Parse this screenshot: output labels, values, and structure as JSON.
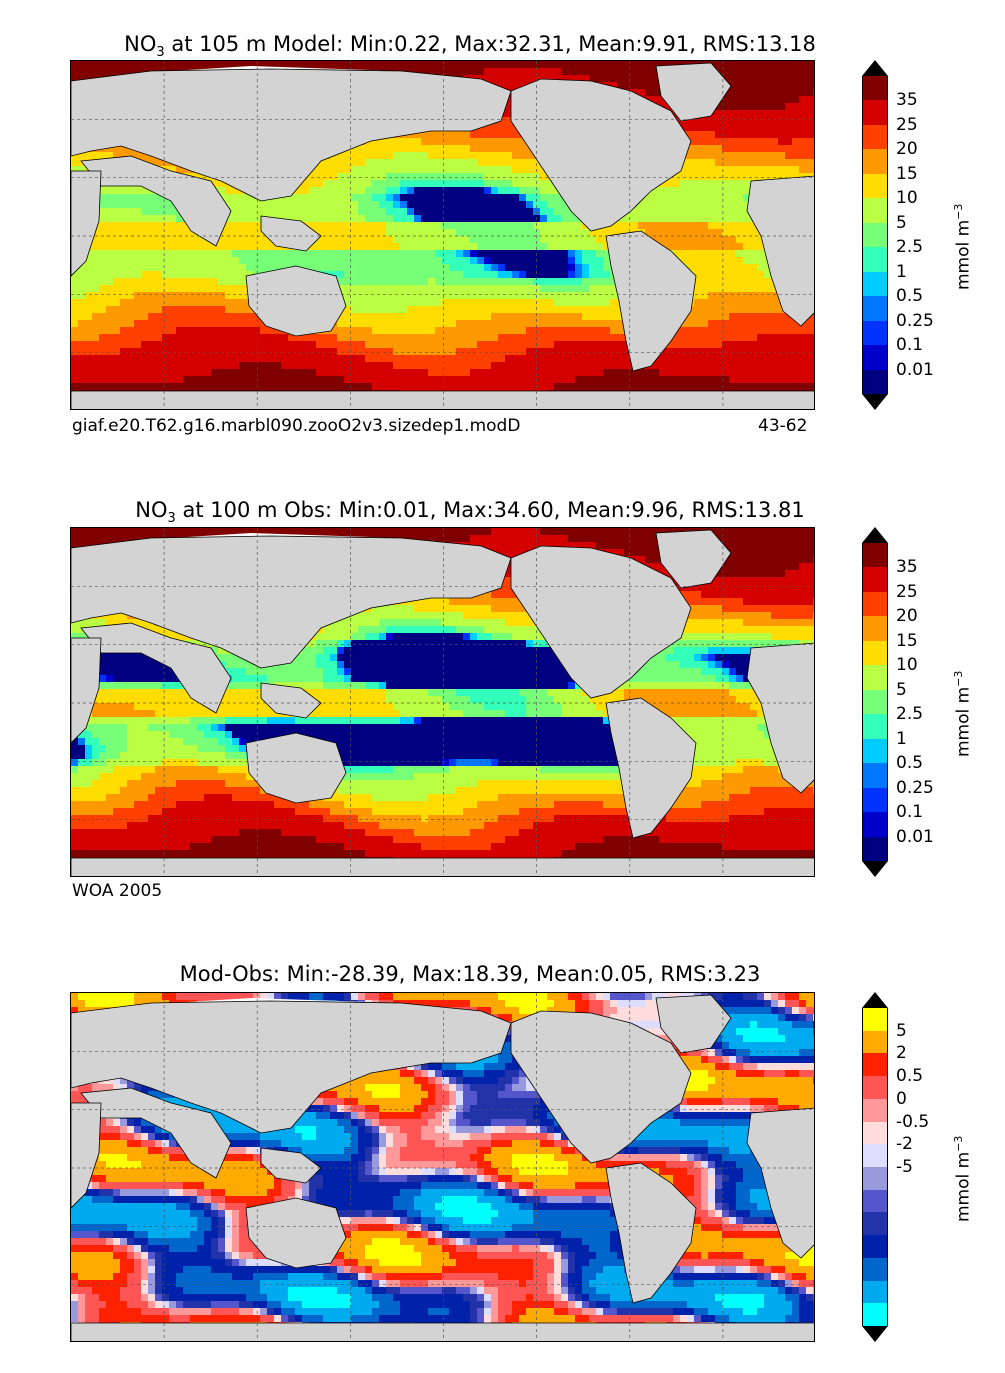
{
  "panels": [
    {
      "title_prefix": "NO",
      "title_sub": "3",
      "title_rest": " at 105 m Model: Min:0.22, Max:32.31, Mean:9.91, RMS:13.18",
      "caption_left": "giaf.e20.T62.g16.marbl090.zooO2v3.sizedep1.modD",
      "caption_right": "43-62"
    },
    {
      "title_prefix": "NO",
      "title_sub": "3",
      "title_rest": " at 100 m Obs: Min:0.01, Max:34.60, Mean:9.96, RMS:13.81",
      "caption_left": "WOA 2005",
      "caption_right": ""
    },
    {
      "title_prefix": "Mod-Obs: Min:-28.39, Max:18.39, Mean:0.05, RMS:3.23",
      "title_sub": "",
      "title_rest": "",
      "caption_left": "",
      "caption_right": ""
    }
  ],
  "colorbar_abs": {
    "unit": "mmol m",
    "unit_sup": "−3",
    "ticks": [
      "35",
      "25",
      "20",
      "15",
      "10",
      "5",
      "2.5",
      "1",
      "0.5",
      "0.25",
      "0.1",
      "0.01"
    ],
    "colors": [
      "#800000",
      "#d40000",
      "#ff4000",
      "#ff9900",
      "#ffdd00",
      "#bbff44",
      "#77ff77",
      "#33ffbb",
      "#00ccff",
      "#0077ff",
      "#0033ff",
      "#0000cc",
      "#000080"
    ],
    "over_color": "#000000",
    "under_color": "#000000"
  },
  "colorbar_diff": {
    "unit": "mmol m",
    "unit_sup": "−3",
    "ticks": [
      "5",
      "2",
      "0.5",
      "0",
      "-0.5",
      "-2",
      "-5"
    ],
    "colors": [
      "#ffff00",
      "#ffaa00",
      "#ff2200",
      "#ff5555",
      "#ff9999",
      "#ffdddd",
      "#ddddff",
      "#9999dd",
      "#5555cc",
      "#2233aa",
      "#0022aa",
      "#0066cc",
      "#00aaee",
      "#00ffff"
    ],
    "over_color": "#000000",
    "under_color": "#000000"
  },
  "map_colors": {
    "land": "#d3d3d3",
    "ice": "#ffffff",
    "grid": "#555555"
  }
}
